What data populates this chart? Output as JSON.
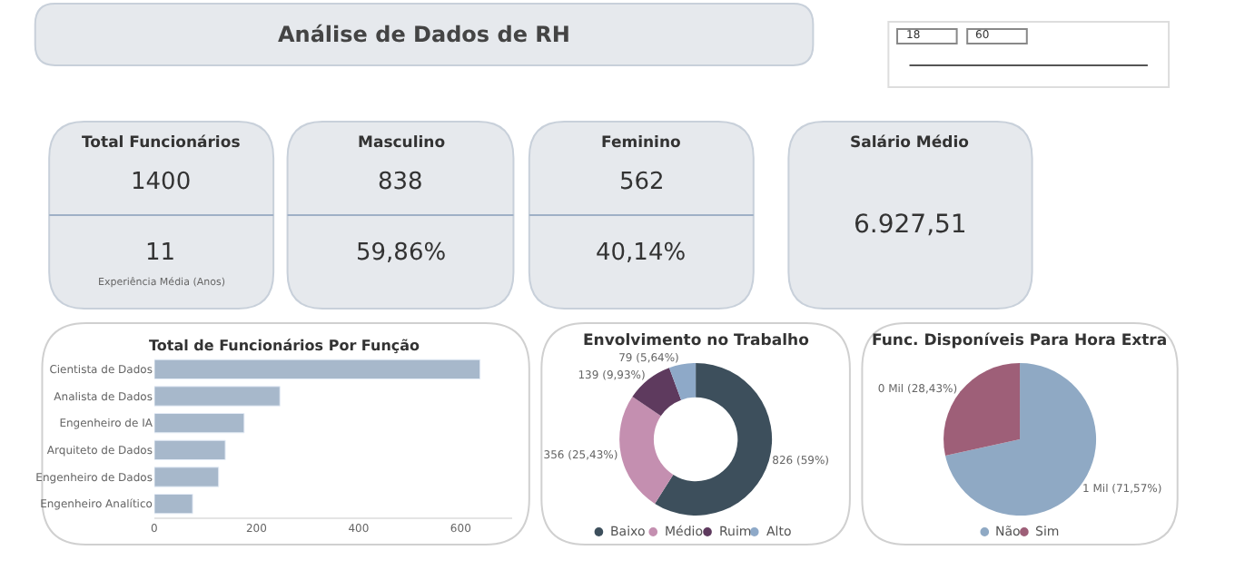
{
  "chart_data": [
    {
      "type": "other",
      "title": "Análise de Dados de RH"
    },
    {
      "type": "other",
      "annotations": [
        "18",
        "60"
      ]
    },
    {
      "type": "other",
      "title": "Total Funcionários",
      "annotations": [
        "1400",
        "11",
        "Experiência Média (Anos)"
      ]
    },
    {
      "type": "other",
      "title": "Masculino",
      "annotations": [
        "838",
        "59,86%"
      ]
    },
    {
      "type": "other",
      "title": "Feminino",
      "annotations": [
        "562",
        "40,14%"
      ]
    },
    {
      "type": "other",
      "title": "Salário Médio",
      "annotations": [
        "6.927,51"
      ]
    },
    {
      "type": "bar",
      "orientation": "horizontal",
      "title": "Total de Funcionários Por Função",
      "categories": [
        "Cientista de Dados",
        "Analista de Dados",
        "Engenheiro de IA",
        "Arquiteto de Dados",
        "Engenheiro de Dados",
        "Engenheiro Analítico"
      ],
      "values": [
        638,
        246,
        176,
        139,
        126,
        75
      ],
      "color": "#a7b8cb",
      "xlim": [
        0,
        700
      ],
      "xticks": [
        0,
        200,
        400,
        600
      ]
    },
    {
      "type": "donut",
      "title": "Envolvimento no Trabalho",
      "categories": [
        "Baixo",
        "Médio",
        "Ruim",
        "Alto"
      ],
      "values": [
        826,
        356,
        139,
        79
      ],
      "colors": [
        "#3d4f5c",
        "#c48fb0",
        "#5e3a5e",
        "#8ea9c8"
      ],
      "value_labels": [
        "826 (59%)",
        "356 (25,43%)",
        "139 (9,93%)",
        "79 (5,64%)"
      ],
      "legend": "bottom"
    },
    {
      "type": "pie",
      "title": "Func. Disponíveis Para Hora Extra",
      "categories": [
        "Não",
        "Sim"
      ],
      "values": [
        71.57,
        28.43
      ],
      "colors": [
        "#8fa9c4",
        "#9e5f78"
      ],
      "value_labels": [
        "1 Mil (71,57%)",
        "0 Mil (28,43%)"
      ],
      "legend": "bottom"
    }
  ]
}
